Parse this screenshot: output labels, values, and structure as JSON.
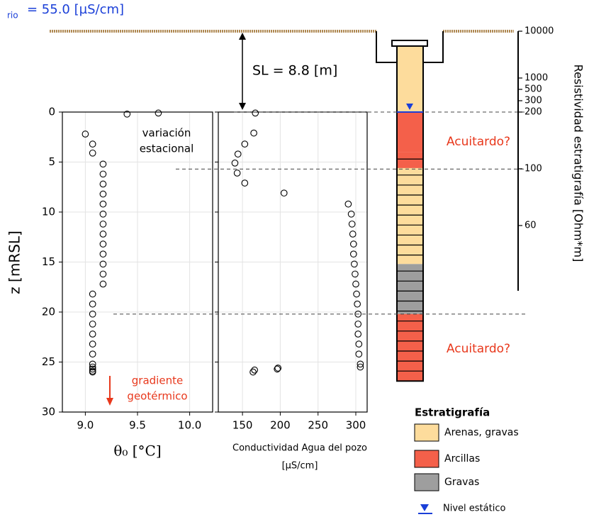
{
  "river_label": {
    "subscript": "rio",
    "text": "= 55.0 [µS/cm]"
  },
  "sl_label": "SL = 8.8 [m]",
  "chart_data": [
    {
      "type": "scatter",
      "x_label": "θ₀ [°C]",
      "y_label": "z [mRSL]",
      "xlim": [
        8.78,
        10.22
      ],
      "ylim": [
        0,
        30
      ],
      "y_inverted": true,
      "xticks": [
        {
          "value": 9,
          "label": "9.0"
        },
        {
          "value": 9.5,
          "label": "9.5"
        },
        {
          "value": 10,
          "label": "10.0"
        }
      ],
      "yticks": [
        0,
        5,
        10,
        15,
        20,
        25,
        30
      ],
      "show_ytick_labels": true,
      "grid": true,
      "series": [
        {
          "color": "#000000",
          "x": [
            9.4,
            9.7,
            9.0,
            9.07,
            9.07,
            9.17,
            9.17,
            9.17,
            9.17,
            9.17,
            9.17,
            9.17,
            9.17,
            9.17,
            9.17,
            9.17,
            9.17,
            9.17,
            9.07,
            9.07,
            9.07,
            9.07,
            9.07,
            9.07,
            9.07,
            9.07,
            9.07,
            9.07,
            9.07,
            9.07
          ],
          "values": [
            0.2,
            0.1,
            2.2,
            3.2,
            4.1,
            5.2,
            6.2,
            7.2,
            8.2,
            9.2,
            10.2,
            11.2,
            12.2,
            13.2,
            14.2,
            15.2,
            16.2,
            17.2,
            18.2,
            19.2,
            20.2,
            21.2,
            22.2,
            23.2,
            24.2,
            25.2,
            25.5,
            25.7,
            25.9,
            26.0
          ]
        }
      ],
      "annotations": [
        {
          "lines": [
            "variación",
            "estacional"
          ],
          "color": "#000000"
        },
        {
          "lines": [
            "gradiente",
            "geotérmico"
          ],
          "color": "#e8381c"
        }
      ]
    },
    {
      "type": "scatter",
      "x_label": [
        "Conductividad Agua del pozo",
        "[µS/cm]"
      ],
      "xlim": [
        118,
        315
      ],
      "ylim": [
        0,
        30
      ],
      "y_inverted": true,
      "xticks": [
        150,
        200,
        250,
        300
      ],
      "yticks": [
        0,
        5,
        10,
        15,
        20,
        25,
        30
      ],
      "show_ytick_labels": false,
      "grid": true,
      "series": [
        {
          "color": "#000000",
          "x": [
            167,
            165,
            153,
            144,
            140,
            143,
            153,
            205,
            290,
            294,
            295,
            296,
            297,
            297,
            298,
            299,
            300,
            301,
            302,
            303,
            303,
            303,
            304,
            304,
            306,
            306,
            197,
            196,
            166,
            164
          ],
          "values": [
            0.1,
            2.1,
            3.2,
            4.2,
            5.1,
            6.1,
            7.1,
            8.1,
            9.2,
            10.2,
            11.2,
            12.2,
            13.2,
            14.2,
            15.2,
            16.2,
            17.2,
            18.2,
            19.2,
            20.2,
            21.2,
            22.2,
            23.2,
            24.2,
            25.2,
            25.5,
            25.6,
            25.7,
            25.8,
            26.0
          ]
        }
      ]
    },
    {
      "type": "column",
      "ylim": [
        0,
        30
      ],
      "categories": [
        "Arenas, gravas",
        "Arcillas",
        "Gravas"
      ],
      "colors": [
        "#fddc9c",
        "#f4604a",
        "#9e9e9e"
      ],
      "legend_title": "Estratigrafía",
      "layers": [
        {
          "top": -6.6,
          "bottom": 0,
          "category": 0,
          "bedded": false
        },
        {
          "top": 0,
          "bottom": 4.0,
          "category": 1,
          "bedded": false
        },
        {
          "top": 4.0,
          "bottom": 5.6,
          "category": 1,
          "bedded": true
        },
        {
          "top": 5.6,
          "bottom": 15.2,
          "category": 0,
          "bedded": true
        },
        {
          "top": 15.2,
          "bottom": 20.2,
          "category": 2,
          "bedded": true
        },
        {
          "top": 20.2,
          "bottom": 26.9,
          "category": 1,
          "bedded": true
        }
      ],
      "water_level": 0,
      "water_label": "Nivel estático",
      "water_color": "#1a3fd8",
      "aquitard_label": "Acuitardo?",
      "aquitard_color": "#e8381c",
      "reference_lines": [
        0,
        5.7,
        20.2
      ],
      "right_axis_label": "Resistividad estratigrafía [Ohm*m]",
      "rticks": [
        10000,
        1000,
        500,
        300,
        200,
        100,
        60
      ]
    }
  ]
}
